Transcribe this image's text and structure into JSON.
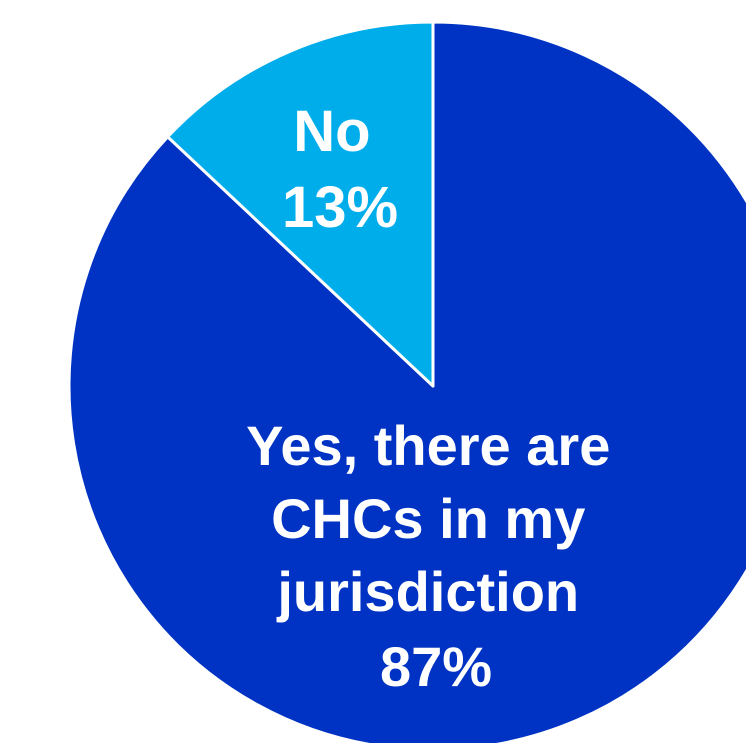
{
  "chart_data": {
    "type": "pie",
    "slices": [
      {
        "label_lines": [
          "Yes, there are",
          "CHCs in my",
          "jurisdiction"
        ],
        "value": 87,
        "value_label": "87%",
        "color": "#0033c3"
      },
      {
        "label_lines": [
          "No"
        ],
        "value": 13,
        "value_label": "13%",
        "color": "#00adeb"
      }
    ],
    "start_angle_deg": 0,
    "direction": "clockwise",
    "separator_color": "#ffffff"
  }
}
